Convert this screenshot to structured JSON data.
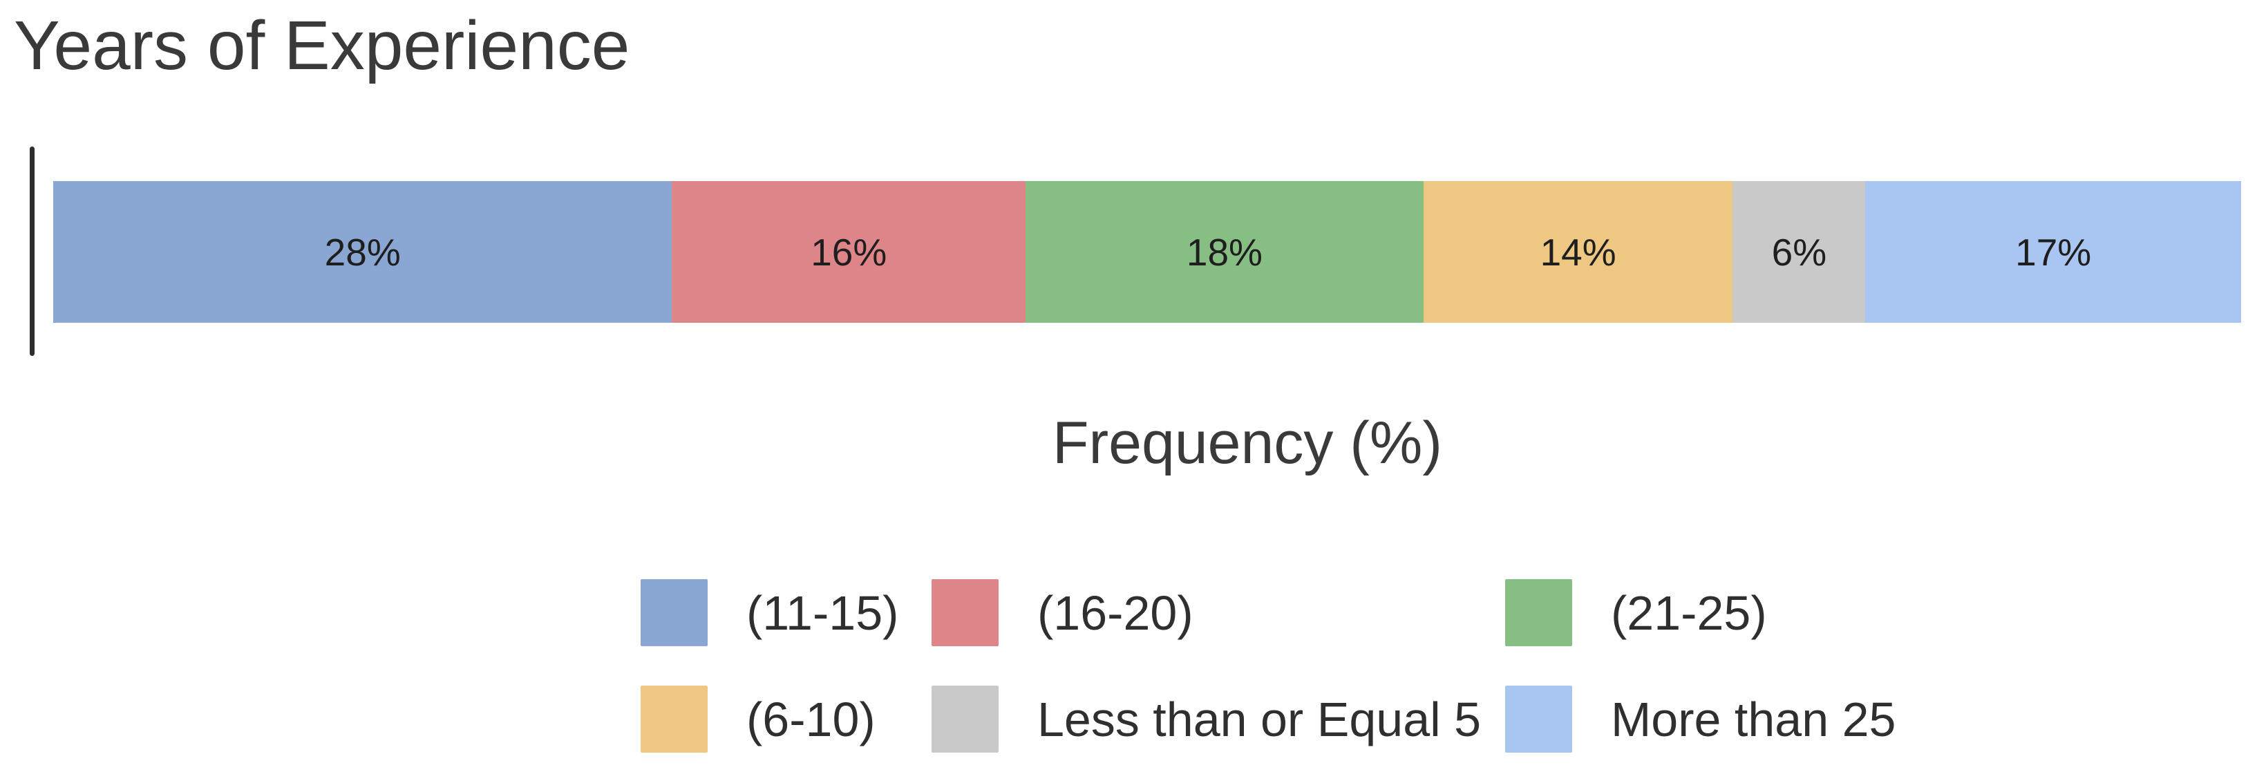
{
  "title": "Years of Experience",
  "chart_data": {
    "type": "bar",
    "variant": "horizontal-stacked-percentage",
    "title": "Years of Experience",
    "xlabel": "Frequency (%)",
    "ylabel": "",
    "grid": false,
    "axis_color": "#2e2e2e",
    "text_color": "#3a3a3a",
    "legend_position": "bottom",
    "legend_rows": 2,
    "legend_columns": 3,
    "categories": [
      "(11-15)",
      "(16-20)",
      "(21-25)",
      "(6-10)",
      "Less than or Equal 5",
      "More than 25"
    ],
    "values": [
      28,
      16,
      18,
      14,
      6,
      17
    ],
    "value_labels": [
      "28%",
      "16%",
      "18%",
      "14%",
      "6%",
      "17%"
    ],
    "colors": [
      "#8AA6D3",
      "#DE8589",
      "#87BE83",
      "#EEC882",
      "#C9C9C9",
      "#A8C6F1"
    ],
    "segments": [
      {
        "label": "(11-15)",
        "value": 28,
        "display": "28%",
        "color": "#8AA6D3"
      },
      {
        "label": "(16-20)",
        "value": 16,
        "display": "16%",
        "color": "#DE8589"
      },
      {
        "label": "(21-25)",
        "value": 18,
        "display": "18%",
        "color": "#87BE83"
      },
      {
        "label": "(6-10)",
        "value": 14,
        "display": "14%",
        "color": "#EEC882"
      },
      {
        "label": "Less than or Equal 5",
        "value": 6,
        "display": "6%",
        "color": "#C9C9C9"
      },
      {
        "label": "More than 25",
        "value": 17,
        "display": "17%",
        "color": "#A8C6F1"
      }
    ]
  }
}
